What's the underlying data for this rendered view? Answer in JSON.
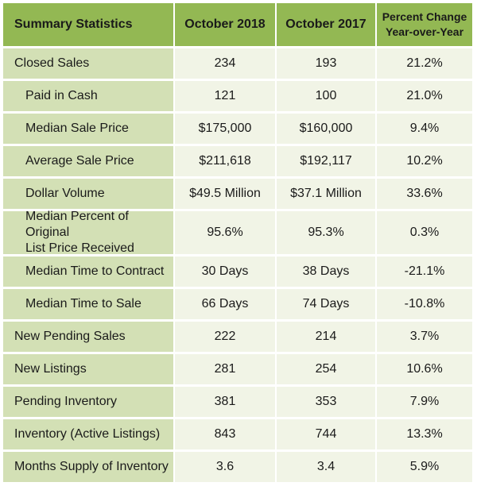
{
  "header": {
    "col0": "Summary Statistics",
    "col1": "October 2018",
    "col2": "October 2017",
    "col3_line1": "Percent Change",
    "col3_line2": "Year-over-Year"
  },
  "rows": [
    {
      "label": "Closed Sales",
      "v2018": "234",
      "v2017": "193",
      "change": "21.2%"
    },
    {
      "label": "Paid in Cash",
      "v2018": "121",
      "v2017": "100",
      "change": "21.0%"
    },
    {
      "label": "Median Sale Price",
      "v2018": "$175,000",
      "v2017": "$160,000",
      "change": "9.4%"
    },
    {
      "label": "Average Sale Price",
      "v2018": "$211,618",
      "v2017": "$192,117",
      "change": "10.2%"
    },
    {
      "label": "Dollar Volume",
      "v2018": "$49.5 Million",
      "v2017": "$37.1 Million",
      "change": "33.6%"
    },
    {
      "label_line1": "Median Percent of Original",
      "label_line2": "List Price Received",
      "v2018": "95.6%",
      "v2017": "95.3%",
      "change": "0.3%"
    },
    {
      "label": "Median Time to Contract",
      "v2018": "30 Days",
      "v2017": "38 Days",
      "change": "-21.1%"
    },
    {
      "label": "Median Time to Sale",
      "v2018": "66 Days",
      "v2017": "74 Days",
      "change": "-10.8%"
    },
    {
      "label": "New Pending Sales",
      "v2018": "222",
      "v2017": "214",
      "change": "3.7%"
    },
    {
      "label": "New Listings",
      "v2018": "281",
      "v2017": "254",
      "change": "10.6%"
    },
    {
      "label": "Pending Inventory",
      "v2018": "381",
      "v2017": "353",
      "change": "7.9%"
    },
    {
      "label": "Inventory (Active Listings)",
      "v2018": "843",
      "v2017": "744",
      "change": "13.3%"
    },
    {
      "label": "Months Supply of Inventory",
      "v2018": "3.6",
      "v2017": "3.4",
      "change": "5.9%"
    }
  ],
  "colors": {
    "header_bg": "#93b853",
    "label_bg": "#d3e0b5",
    "value_bg": "#f1f4e6"
  }
}
